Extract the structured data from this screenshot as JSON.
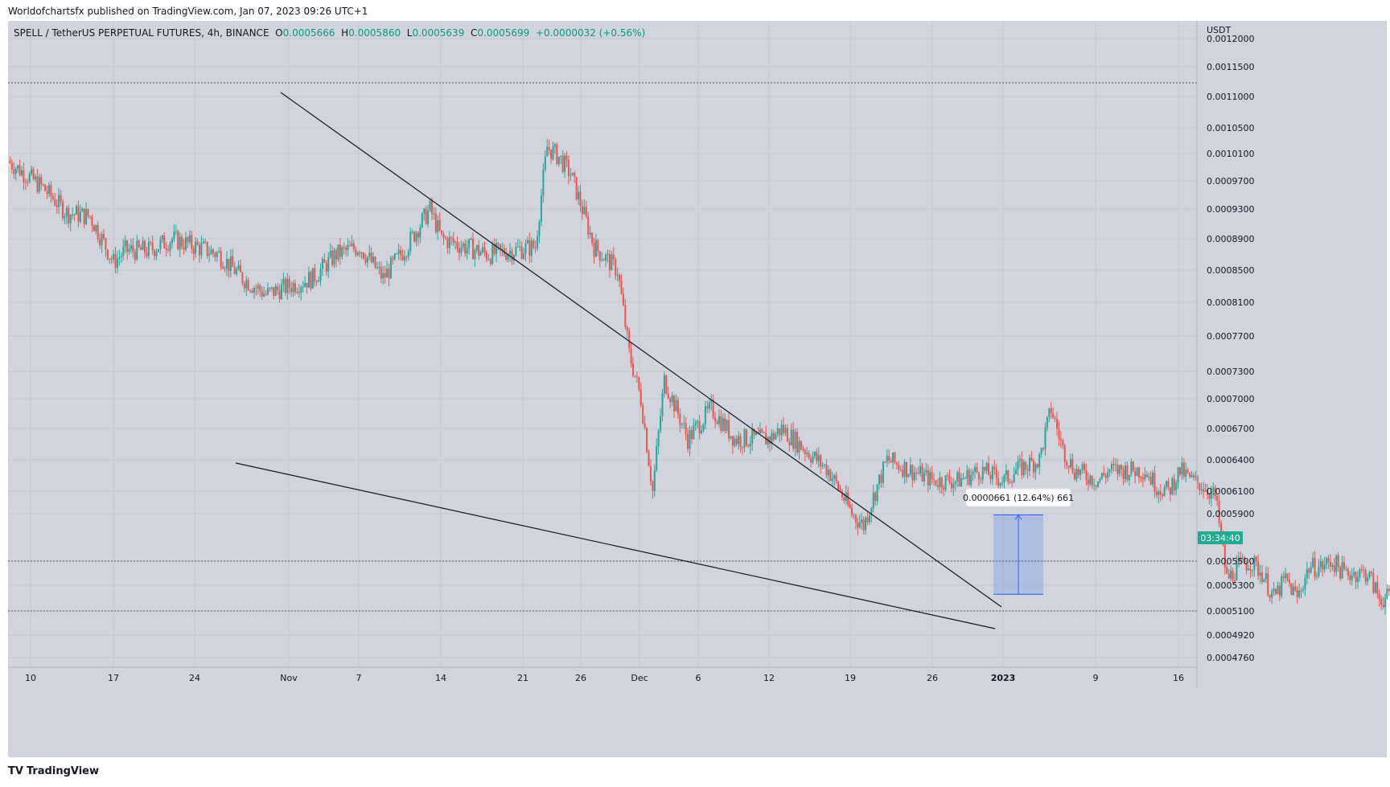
{
  "header": {
    "publisher_line": "Worldofchartsfx published on TradingView.com, Jan 07, 2023 09:26 UTC+1"
  },
  "legend": {
    "symbol": "SPELL / TetherUS PERPETUAL FUTURES, 4h, BINANCE",
    "o_label": "O",
    "o_value": "0.0005666",
    "h_label": "H",
    "h_value": "0.0005860",
    "l_label": "L",
    "l_value": "0.0005639",
    "c_label": "C",
    "c_value": "0.0005699",
    "change": "+0.0000032 (+0.56%)"
  },
  "branding": {
    "tradingview_label": "TradingView"
  },
  "colors": {
    "up": "#26a69a",
    "down": "#ef5350",
    "background": "#d1d4dc",
    "countdown_badge": "#22ab94",
    "measure_fill": "#2962ff"
  },
  "chart_data": {
    "type": "candlestick",
    "timeframe": "4h",
    "y_axis_unit": "USDT",
    "price_ticks": [
      "0.0004760",
      "0.0004920",
      "0.0005100",
      "0.0005300",
      "0.0005500",
      "0.0005900",
      "0.0006100",
      "0.0006400",
      "0.0006700",
      "0.0007000",
      "0.0007300",
      "0.0007700",
      "0.0008100",
      "0.0008500",
      "0.0008900",
      "0.0009300",
      "0.0009700",
      "0.0010100",
      "0.0010500",
      "0.0011000",
      "0.0011500",
      "0.0012000"
    ],
    "x_ticks": [
      "10",
      "17",
      "24",
      "Nov",
      "7",
      "14",
      "21",
      "26",
      "Dec",
      "6",
      "12",
      "19",
      "26",
      "2023",
      "9",
      "16"
    ],
    "countdown_label": "03:34:40",
    "measure_label": "0.0000661 (12.64%) 661",
    "reference_lines": [
      0.001123,
      0.00055,
      0.00051
    ],
    "trendlines": [
      {
        "name": "upper",
        "from": [
          "Oct 31",
          0.00111
        ],
        "to": [
          "Jan 1",
          0.000515
        ]
      },
      {
        "name": "lower",
        "from": [
          "Oct 28",
          0.000638
        ],
        "to": [
          "Jan 1",
          0.000495
        ]
      }
    ],
    "measure_box": {
      "price_from": 0.000523,
      "price_to": 0.000589
    },
    "closes": [
      [
        0,
        0.000999
      ],
      [
        3,
        0.00096
      ],
      [
        5,
        0.000925
      ],
      [
        7,
        0.00092
      ],
      [
        9,
        0.00086
      ],
      [
        10,
        0.000875
      ],
      [
        12,
        0.000875
      ],
      [
        14,
        0.00089
      ],
      [
        16,
        0.00088
      ],
      [
        18,
        0.00087
      ],
      [
        20,
        0.00084
      ],
      [
        22,
        0.00082
      ],
      [
        24,
        0.00083
      ],
      [
        26,
        0.00084
      ],
      [
        28,
        0.00087
      ],
      [
        30,
        0.00088
      ],
      [
        32,
        0.00084
      ],
      [
        34,
        0.00088
      ],
      [
        36,
        0.00093
      ],
      [
        37,
        0.00089
      ],
      [
        39,
        0.00088
      ],
      [
        41,
        0.00087
      ],
      [
        43,
        0.000875
      ],
      [
        45,
        0.00088
      ],
      [
        46,
        0.00102
      ],
      [
        47,
        0.001005
      ],
      [
        48,
        0.00098
      ],
      [
        49,
        0.00093
      ],
      [
        50,
        0.00088
      ],
      [
        52,
        0.00085
      ],
      [
        53,
        0.00075
      ],
      [
        54,
        0.0007
      ],
      [
        55,
        0.00061
      ],
      [
        56,
        0.00072
      ],
      [
        57,
        0.00069
      ],
      [
        58,
        0.00066
      ],
      [
        60,
        0.00069
      ],
      [
        62,
        0.00066
      ],
      [
        63,
        0.00066
      ],
      [
        65,
        0.00066
      ],
      [
        66,
        0.00067
      ],
      [
        68,
        0.00065
      ],
      [
        70,
        0.00063
      ],
      [
        72,
        0.00059
      ],
      [
        73,
        0.00058
      ],
      [
        75,
        0.00064
      ],
      [
        77,
        0.00063
      ],
      [
        79,
        0.00062
      ],
      [
        81,
        0.00062
      ],
      [
        83,
        0.00063
      ],
      [
        85,
        0.00062
      ],
      [
        86,
        0.00063
      ],
      [
        88,
        0.00064
      ],
      [
        89,
        0.00069
      ],
      [
        90,
        0.00065
      ],
      [
        91,
        0.00063
      ],
      [
        93,
        0.00062
      ],
      [
        94,
        0.00063
      ],
      [
        96,
        0.00063
      ],
      [
        97,
        0.00063
      ],
      [
        98,
        0.000615
      ],
      [
        99,
        0.00061
      ],
      [
        100,
        0.00063
      ],
      [
        101,
        0.00062
      ],
      [
        102,
        0.000615
      ],
      [
        103,
        0.000605
      ],
      [
        104,
        0.000535
      ],
      [
        105,
        0.000545
      ],
      [
        106,
        0.00055
      ],
      [
        107,
        0.00054
      ],
      [
        108,
        0.00052
      ],
      [
        109,
        0.000535
      ],
      [
        110,
        0.00052
      ],
      [
        111,
        0.000545
      ],
      [
        112,
        0.000545
      ],
      [
        113,
        0.00055
      ],
      [
        114,
        0.00054
      ],
      [
        115,
        0.00054
      ],
      [
        116,
        0.00054
      ],
      [
        117,
        0.00052
      ],
      [
        118,
        0.00052
      ],
      [
        119,
        0.000525
      ],
      [
        120,
        0.00052
      ],
      [
        121,
        0.000525
      ],
      [
        122,
        0.00053
      ],
      [
        123,
        0.00053
      ],
      [
        124,
        0.000545
      ],
      [
        125,
        0.00054
      ],
      [
        126,
        0.00055
      ],
      [
        127,
        0.000545
      ],
      [
        128,
        0.00053
      ],
      [
        129,
        0.00055
      ],
      [
        130,
        0.000575
      ]
    ]
  }
}
